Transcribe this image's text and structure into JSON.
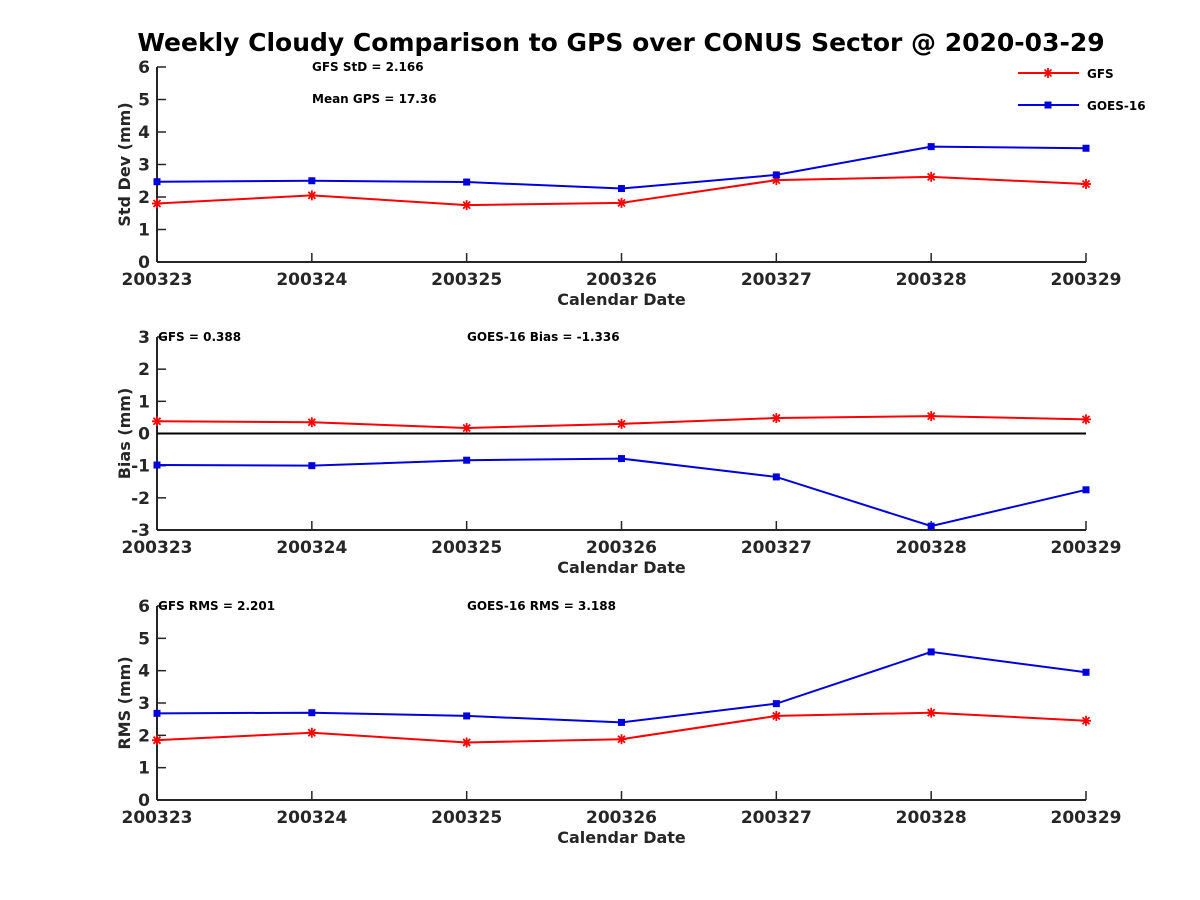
{
  "title": "Weekly Cloudy Comparison to GPS over CONUS Sector @ 2020-03-29",
  "colors": {
    "GFS": "#ff0000",
    "GOES-16": "#0000dd",
    "axis": "#262626",
    "zero_line": "#000000"
  },
  "legend": {
    "placement": "top-right",
    "items": [
      {
        "name": "GFS",
        "marker": "asterisk"
      },
      {
        "name": "GOES-16",
        "marker": "square"
      }
    ]
  },
  "chart_data": [
    {
      "type": "line",
      "ylabel": "Std Dev (mm)",
      "xlabel": "Calendar Date",
      "categories": [
        "200323",
        "200324",
        "200325",
        "200326",
        "200327",
        "200328",
        "200329"
      ],
      "ylim": [
        0,
        6
      ],
      "yticks": [
        0,
        1,
        2,
        3,
        4,
        5,
        6
      ],
      "zero_line": false,
      "grid": false,
      "annotations": [
        "GFS StD = 2.166",
        "Mean GPS = 17.36"
      ],
      "series": [
        {
          "name": "GFS",
          "values": [
            1.8,
            2.05,
            1.75,
            1.82,
            2.52,
            2.62,
            2.4
          ]
        },
        {
          "name": "GOES-16",
          "values": [
            2.47,
            2.5,
            2.46,
            2.26,
            2.68,
            3.55,
            3.5
          ]
        }
      ]
    },
    {
      "type": "line",
      "ylabel": "Bias (mm)",
      "xlabel": "Calendar Date",
      "categories": [
        "200323",
        "200324",
        "200325",
        "200326",
        "200327",
        "200328",
        "200329"
      ],
      "ylim": [
        -3,
        3
      ],
      "yticks": [
        -3,
        -2,
        -1,
        0,
        1,
        2,
        3
      ],
      "zero_line": true,
      "grid": false,
      "annotations": [
        "GFS = 0.388",
        "GOES-16 Bias  = -1.336"
      ],
      "series": [
        {
          "name": "GFS",
          "values": [
            0.38,
            0.35,
            0.17,
            0.3,
            0.48,
            0.54,
            0.44
          ]
        },
        {
          "name": "GOES-16",
          "values": [
            -0.98,
            -1.0,
            -0.83,
            -0.78,
            -1.35,
            -2.88,
            -1.75
          ]
        }
      ]
    },
    {
      "type": "line",
      "ylabel": "RMS (mm)",
      "xlabel": "Calendar Date",
      "categories": [
        "200323",
        "200324",
        "200325",
        "200326",
        "200327",
        "200328",
        "200329"
      ],
      "ylim": [
        0,
        6
      ],
      "yticks": [
        0,
        1,
        2,
        3,
        4,
        5,
        6
      ],
      "zero_line": false,
      "grid": false,
      "annotations": [
        "GFS RMS = 2.201",
        "GOES-16 RMS = 3.188"
      ],
      "series": [
        {
          "name": "GFS",
          "values": [
            1.85,
            2.08,
            1.78,
            1.88,
            2.6,
            2.7,
            2.45
          ]
        },
        {
          "name": "GOES-16",
          "values": [
            2.68,
            2.7,
            2.6,
            2.4,
            2.98,
            4.58,
            3.95
          ]
        }
      ]
    }
  ]
}
